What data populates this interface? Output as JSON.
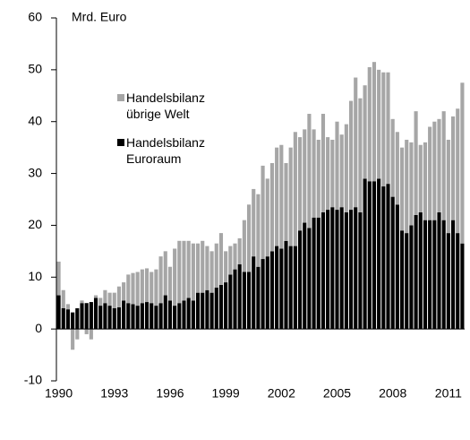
{
  "chart_data": {
    "type": "stacked-bar",
    "title": "Mrd. Euro",
    "categories": [
      "1990",
      null,
      null,
      null,
      null,
      null,
      null,
      null,
      null,
      null,
      null,
      null,
      "1993",
      null,
      null,
      null,
      null,
      null,
      null,
      null,
      null,
      null,
      null,
      null,
      "1996",
      null,
      null,
      null,
      null,
      null,
      null,
      null,
      null,
      null,
      null,
      null,
      "1999",
      null,
      null,
      null,
      null,
      null,
      null,
      null,
      null,
      null,
      null,
      null,
      "2002",
      null,
      null,
      null,
      null,
      null,
      null,
      null,
      null,
      null,
      null,
      null,
      "2005",
      null,
      null,
      null,
      null,
      null,
      null,
      null,
      null,
      null,
      null,
      null,
      "2008",
      null,
      null,
      null,
      null,
      null,
      null,
      null,
      null,
      null,
      null,
      null,
      "2011",
      null,
      null,
      null
    ],
    "series": [
      {
        "name": "Handelsbilanz Euroraum",
        "color": "#000000",
        "values": [
          6.5,
          4,
          3.8,
          3.2,
          4,
          5,
          5,
          5.2,
          6,
          4.5,
          5,
          4.5,
          4,
          4.2,
          5.5,
          5,
          4.8,
          4.5,
          5,
          5.2,
          5,
          4.5,
          5,
          6.5,
          5.5,
          4.5,
          5,
          5.5,
          6,
          5.5,
          7,
          7,
          7.5,
          7,
          8,
          8.5,
          9,
          10.5,
          11.5,
          12.5,
          11,
          11,
          14,
          12,
          13.5,
          14,
          15,
          16,
          15.5,
          17,
          16,
          16,
          19,
          20.5,
          19.5,
          21.5,
          21.5,
          22.5,
          23,
          23.5,
          23,
          23.5,
          22.5,
          23,
          23.5,
          22.5,
          29,
          28.5,
          28.5,
          29,
          27.5,
          28,
          25.5,
          24,
          19,
          18.5,
          20,
          22,
          22.5,
          21,
          21,
          21,
          22.5,
          21,
          18.5,
          21,
          18.5,
          16.5
        ]
      },
      {
        "name": "Handelsbilanz übrige Welt",
        "color": "#a6a6a6",
        "values": [
          6.5,
          3.5,
          1,
          -4,
          -2,
          0.5,
          -1,
          -2,
          0.5,
          1.5,
          2.5,
          2.5,
          3,
          4,
          3.5,
          5.5,
          6,
          6.5,
          6.5,
          6.5,
          6,
          7,
          9,
          8.5,
          6.5,
          11,
          12,
          11.5,
          11,
          11,
          9.5,
          10,
          8.5,
          8,
          8.5,
          10,
          6,
          5.5,
          5,
          5,
          10,
          13,
          13,
          14,
          18,
          15,
          17,
          19,
          20,
          15,
          19,
          22,
          18,
          18,
          22,
          17,
          15,
          19,
          14,
          13,
          17,
          14,
          17,
          21,
          25,
          22,
          18,
          22,
          23,
          21,
          22,
          21.5,
          15,
          14,
          16,
          18,
          16,
          20,
          13,
          15,
          18,
          19,
          18,
          21,
          18,
          20,
          24,
          31
        ]
      }
    ],
    "ylim": [
      -10,
      60
    ],
    "yticks": [
      -10,
      0,
      10,
      20,
      30,
      40,
      50,
      60
    ]
  }
}
